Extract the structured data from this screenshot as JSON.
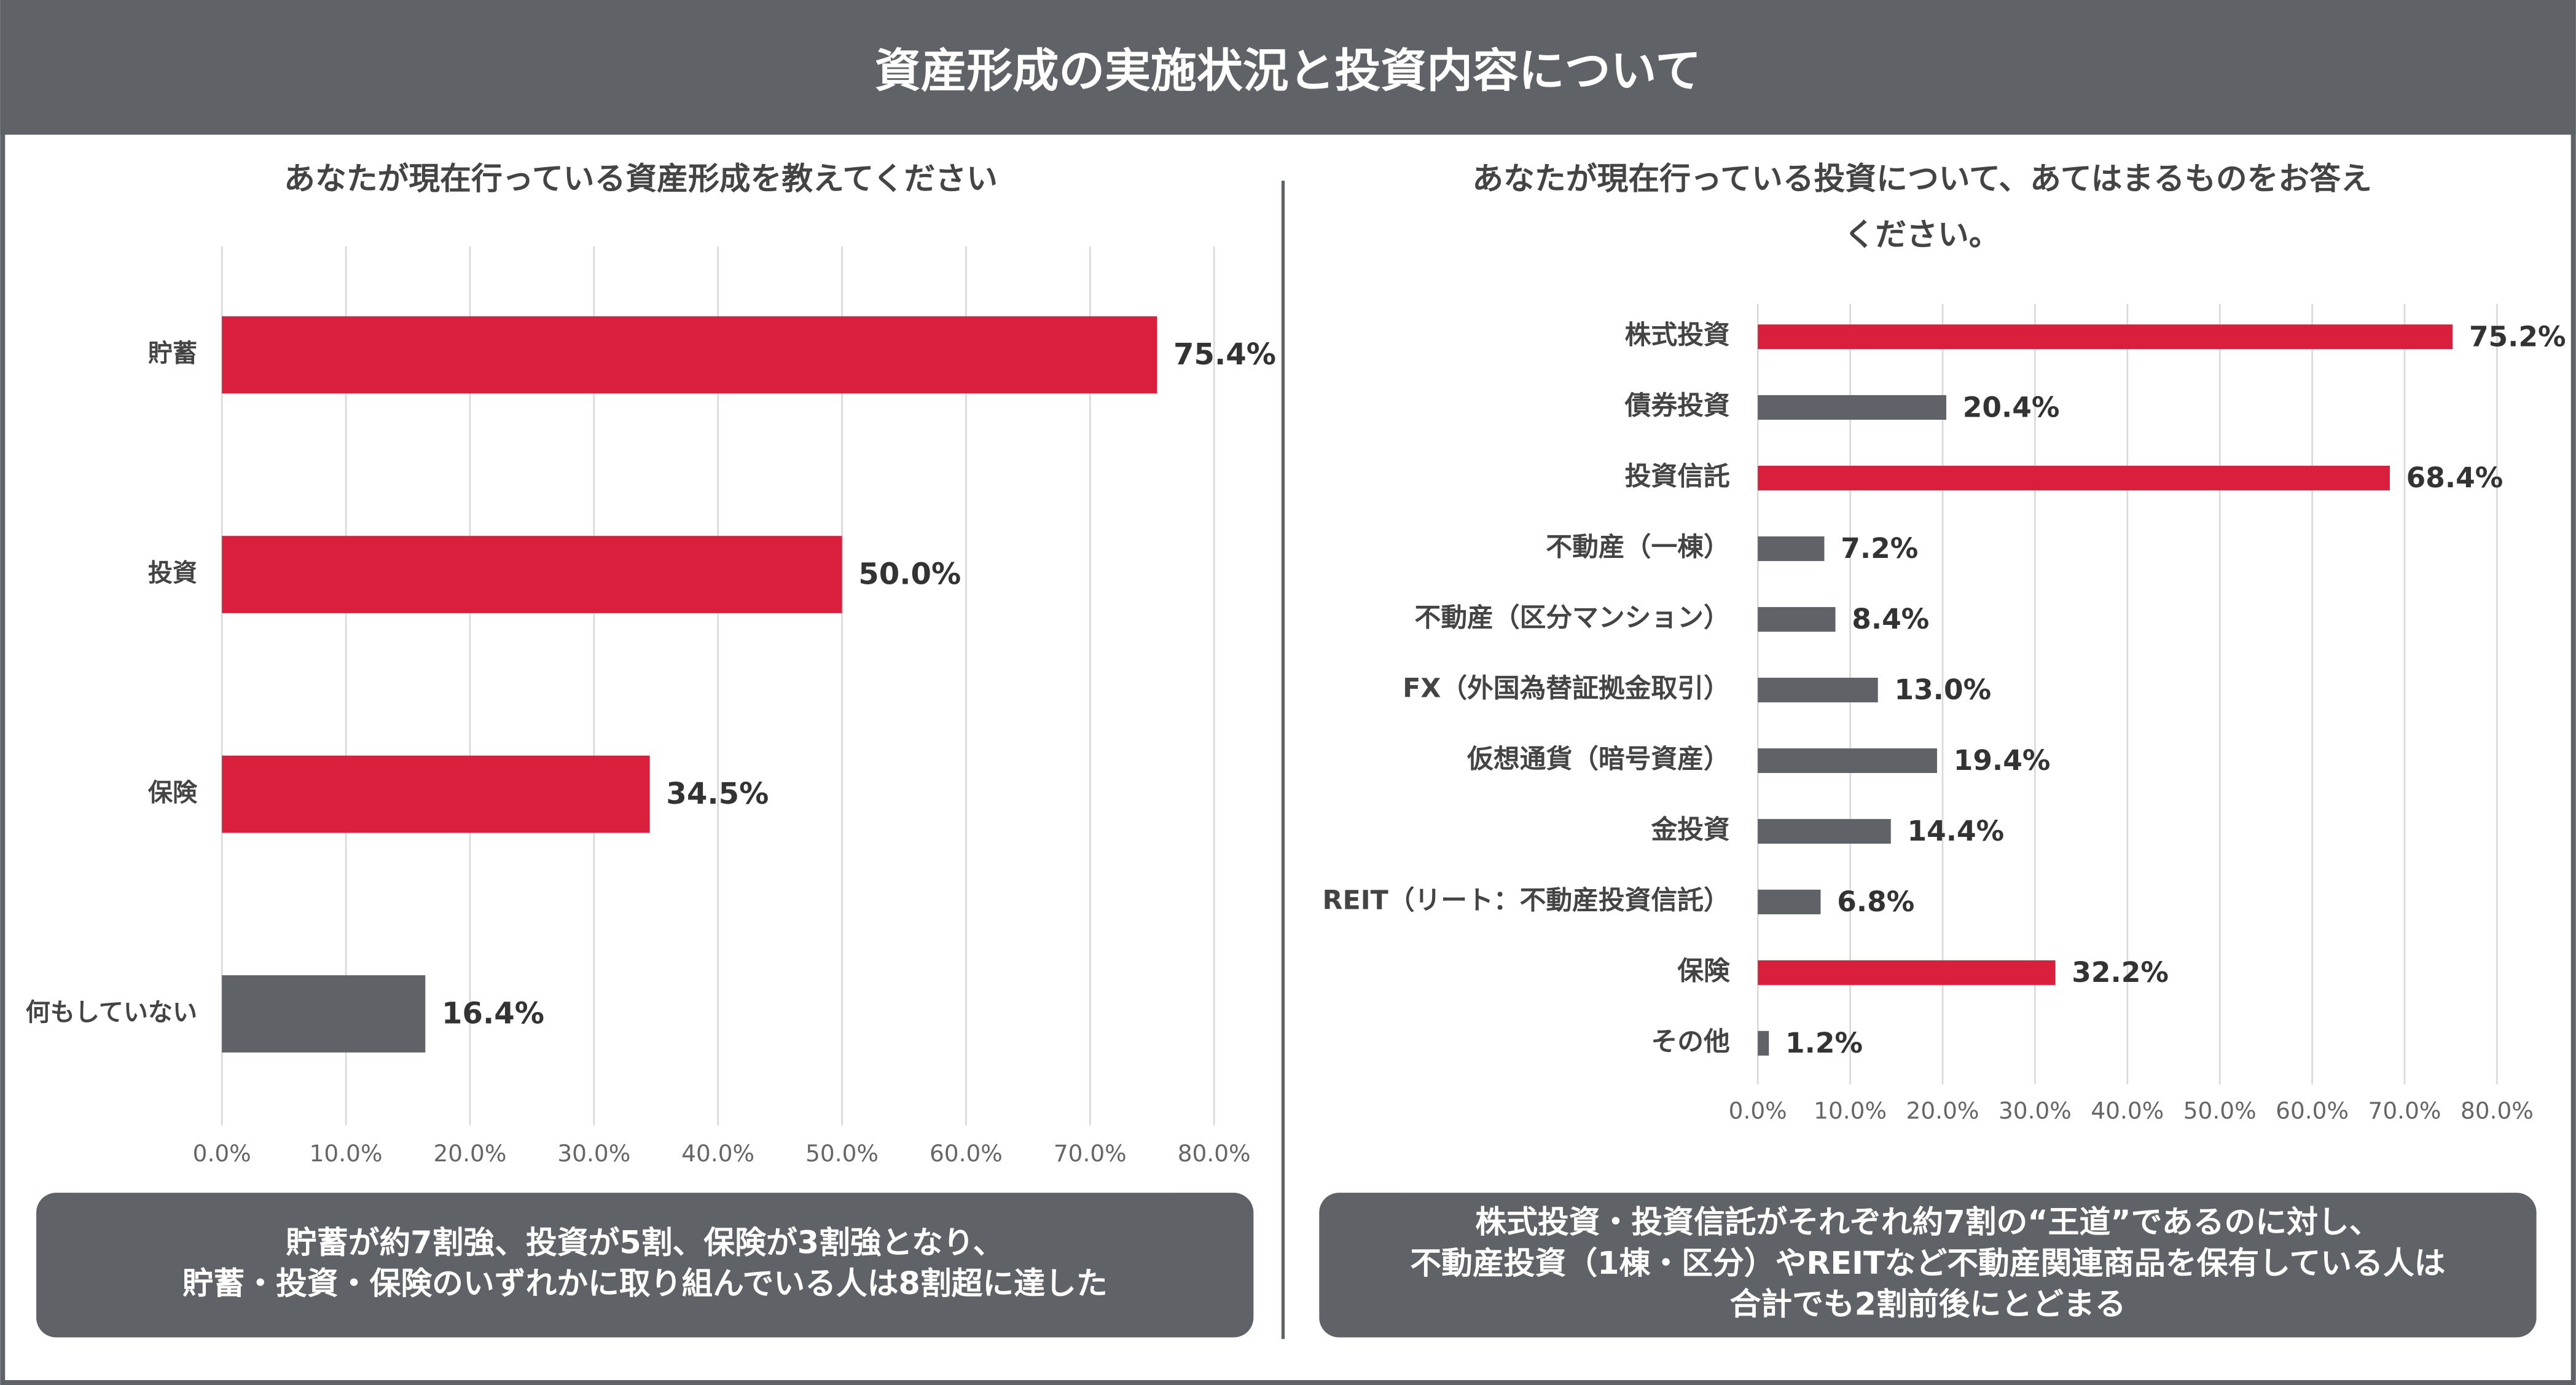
{
  "header": {
    "title": "資産形成の実施状況と投資内容について"
  },
  "chart_data": [
    {
      "type": "bar",
      "orientation": "horizontal",
      "title": [
        "あなたが現在行っている資産形成を教えてください"
      ],
      "categories": [
        "貯蓄",
        "投資",
        "保険",
        "何もしていない"
      ],
      "values": [
        75.4,
        50.0,
        34.5,
        16.4
      ],
      "value_labels": [
        "75.4%",
        "50.0%",
        "34.5%",
        "16.4%"
      ],
      "colors": [
        "#d91f3b",
        "#d91f3b",
        "#d91f3b",
        "#5f6368"
      ],
      "xlim": [
        0,
        80
      ],
      "xticks": [
        {
          "value": 0,
          "label": "0.0%"
        },
        {
          "value": 10,
          "label": "10.0%"
        },
        {
          "value": 20,
          "label": "20.0%"
        },
        {
          "value": 30,
          "label": "30.0%"
        },
        {
          "value": 40,
          "label": "40.0%"
        },
        {
          "value": 50,
          "label": "50.0%"
        },
        {
          "value": 60,
          "label": "60.0%"
        },
        {
          "value": 70,
          "label": "70.0%"
        },
        {
          "value": 80,
          "label": "80.0%"
        }
      ],
      "grid": true
    },
    {
      "type": "bar",
      "orientation": "horizontal",
      "title": [
        "あなたが現在行っている投資について、あてはまるものをお答え",
        "ください。"
      ],
      "categories": [
        "株式投資",
        "債券投資",
        "投資信託",
        "不動産（一棟）",
        "不動産（区分マンション）",
        "FX（外国為替証拠金取引）",
        "仮想通貨（暗号資産）",
        "金投資",
        "REIT（リート：不動産投資信託）",
        "保険",
        "その他"
      ],
      "values": [
        75.2,
        20.4,
        68.4,
        7.2,
        8.4,
        13.0,
        19.4,
        14.4,
        6.8,
        32.2,
        1.2
      ],
      "value_labels": [
        "75.2%",
        "20.4%",
        "68.4%",
        "7.2%",
        "8.4%",
        "13.0%",
        "19.4%",
        "14.4%",
        "6.8%",
        "32.2%",
        "1.2%"
      ],
      "colors": [
        "#d91f3b",
        "#5f6368",
        "#d91f3b",
        "#5f6368",
        "#5f6368",
        "#5f6368",
        "#5f6368",
        "#5f6368",
        "#5f6368",
        "#d91f3b",
        "#5f6368"
      ],
      "xlim": [
        0,
        80
      ],
      "xticks": [
        {
          "value": 0,
          "label": "0.0%"
        },
        {
          "value": 10,
          "label": "10.0%"
        },
        {
          "value": 20,
          "label": "20.0%"
        },
        {
          "value": 30,
          "label": "30.0%"
        },
        {
          "value": 40,
          "label": "40.0%"
        },
        {
          "value": 50,
          "label": "50.0%"
        },
        {
          "value": 60,
          "label": "60.0%"
        },
        {
          "value": 70,
          "label": "70.0%"
        },
        {
          "value": 80,
          "label": "80.0%"
        }
      ],
      "grid": true
    }
  ],
  "summaries": [
    {
      "lines": [
        "貯蓄が約7割強、投資が5割、保険が3割強となり、",
        "貯蓄・投資・保険のいずれかに取り組んでいる人は8割超に達した"
      ]
    },
    {
      "lines": [
        "株式投資・投資信託がそれぞれ約7割の“王道”であるのに対し、",
        "不動産投資（1棟・区分）やREITなど不動産関連商品を保有している人は",
        "合計でも2割前後にとどまる"
      ]
    }
  ]
}
